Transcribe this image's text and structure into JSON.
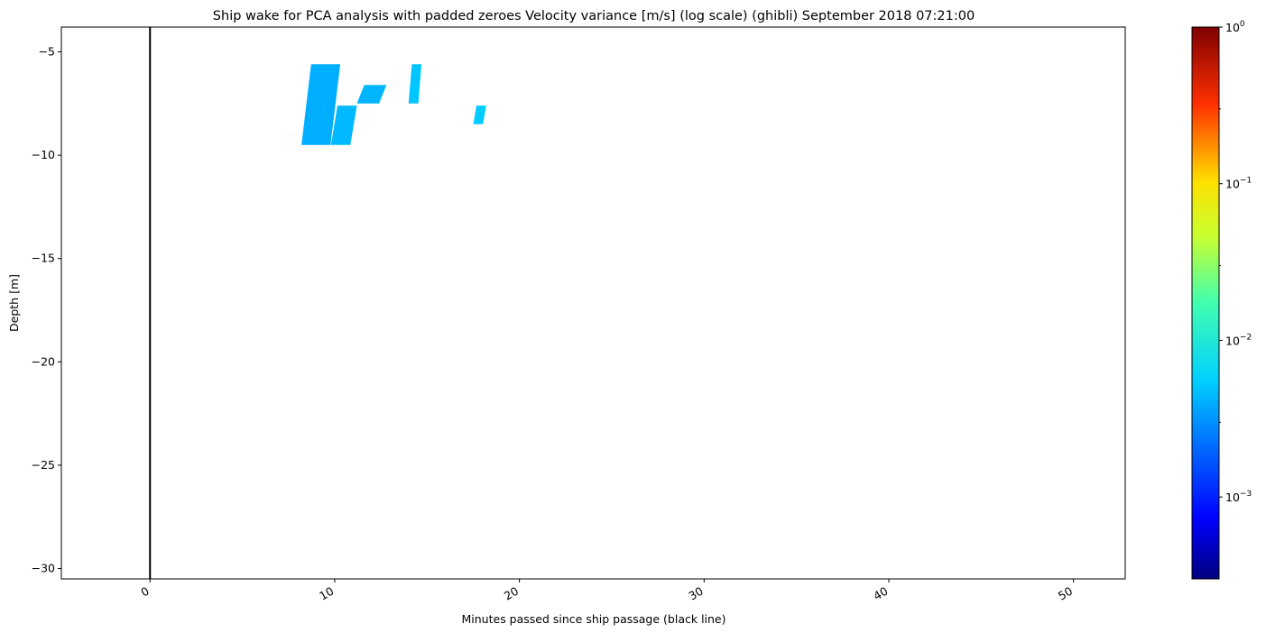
{
  "chart_data": {
    "type": "heatmap",
    "title": "Ship wake for PCA analysis with padded zeroes Velocity variance [m/s] (log scale) (ghibli) September 2018 07:21:00",
    "xlabel": "Minutes passed since ship passage (black line)",
    "ylabel": "Depth [m]",
    "xlim": [
      -4.8,
      52.8
    ],
    "ylim": [
      -30.5,
      -3.8
    ],
    "x_ticks": [
      0,
      10,
      20,
      30,
      40,
      50
    ],
    "x_tick_labels": [
      "0",
      "10",
      "20",
      "30",
      "40",
      "50"
    ],
    "y_ticks": [
      -5,
      -10,
      -15,
      -20,
      -25,
      -30
    ],
    "y_tick_labels": [
      "−5",
      "−10",
      "−15",
      "−20",
      "−25",
      "−30"
    ],
    "x_tick_rotation_deg": 30,
    "grid": false,
    "ship_passage_line": {
      "x": 0,
      "color": "#000000"
    },
    "colorbar": {
      "colormap": "jet",
      "scale": "log",
      "range": [
        0.0003,
        1
      ],
      "major_ticks": [
        0.001,
        0.01,
        0.1,
        1
      ],
      "major_tick_labels": [
        {
          "base": "10",
          "exp": "−3"
        },
        {
          "base": "10",
          "exp": "−2"
        },
        {
          "base": "10",
          "exp": "−1"
        },
        {
          "base": "10",
          "exp": "0"
        }
      ],
      "minor_ticks": [
        0.003,
        0.03,
        0.3
      ]
    },
    "patches": [
      {
        "x": [
          8.2,
          10.3
        ],
        "y": [
          -5.6,
          -9.5
        ],
        "value": 0.0033
      },
      {
        "x": [
          9.8,
          11.2
        ],
        "y": [
          -7.6,
          -9.5
        ],
        "value": 0.0036
      },
      {
        "x": [
          11.2,
          12.8
        ],
        "y": [
          -6.6,
          -7.5
        ],
        "value": 0.0035
      },
      {
        "x": [
          14.0,
          14.7
        ],
        "y": [
          -5.6,
          -7.5
        ],
        "value": 0.004
      },
      {
        "x": [
          17.5,
          18.2
        ],
        "y": [
          -7.6,
          -8.5
        ],
        "value": 0.0042
      }
    ]
  }
}
